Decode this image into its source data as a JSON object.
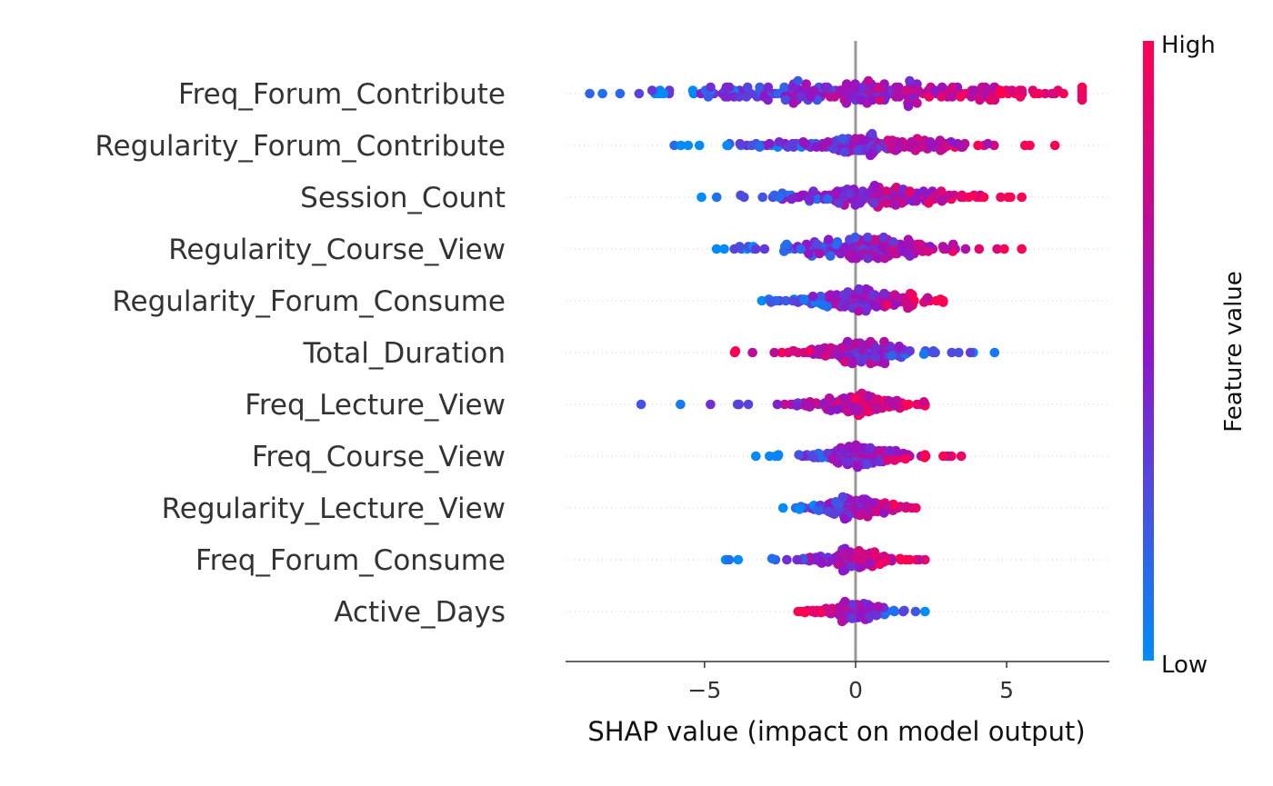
{
  "chart_data": {
    "type": "scatter",
    "subtype": "beeswarm",
    "xlabel": "SHAP value (impact on model output)",
    "xlim": [
      -9.6,
      8.4
    ],
    "xticks": [
      {
        "value": -5,
        "label": "−5"
      },
      {
        "value": 0,
        "label": "0"
      },
      {
        "value": 5,
        "label": "5"
      }
    ],
    "zero_line": 0,
    "features": [
      {
        "name": "Freq_Forum_Contribute",
        "range": [
          -8.8,
          7.5
        ],
        "spread_center": 0.6,
        "direction": 1,
        "n": 250,
        "sigma": 3.2,
        "band": 0.55
      },
      {
        "name": "Regularity_Forum_Contribute",
        "range": [
          -6.0,
          6.6
        ],
        "spread_center": 0.3,
        "direction": 1,
        "n": 200,
        "sigma": 1.7,
        "band": 0.45
      },
      {
        "name": "Session_Count",
        "range": [
          -5.1,
          5.5
        ],
        "spread_center": 0.5,
        "direction": 1,
        "n": 190,
        "sigma": 1.6,
        "band": 0.45
      },
      {
        "name": "Regularity_Course_View",
        "range": [
          -4.6,
          5.5
        ],
        "spread_center": 0.3,
        "direction": 1,
        "n": 180,
        "sigma": 1.4,
        "band": 0.45
      },
      {
        "name": "Regularity_Forum_Consume",
        "range": [
          -3.1,
          2.9
        ],
        "spread_center": 0.2,
        "direction": 1,
        "n": 190,
        "sigma": 1.0,
        "band": 0.45
      },
      {
        "name": "Total_Duration",
        "range": [
          -4.0,
          4.6
        ],
        "spread_center": 0.1,
        "direction": -1,
        "n": 180,
        "sigma": 0.9,
        "band": 0.45
      },
      {
        "name": "Freq_Lecture_View",
        "range": [
          -7.1,
          2.3
        ],
        "spread_center": 0.2,
        "direction": 1,
        "n": 170,
        "sigma": 0.8,
        "band": 0.45
      },
      {
        "name": "Freq_Course_View",
        "range": [
          -3.3,
          3.5
        ],
        "spread_center": 0.0,
        "direction": 1,
        "n": 170,
        "sigma": 0.8,
        "band": 0.45
      },
      {
        "name": "Regularity_Lecture_View",
        "range": [
          -2.4,
          2.0
        ],
        "spread_center": 0.0,
        "direction": 1,
        "n": 160,
        "sigma": 0.7,
        "band": 0.45
      },
      {
        "name": "Freq_Forum_Consume",
        "range": [
          -4.3,
          2.3
        ],
        "spread_center": 0.0,
        "direction": 1,
        "n": 160,
        "sigma": 0.7,
        "band": 0.45
      },
      {
        "name": "Active_Days",
        "range": [
          -1.9,
          2.3
        ],
        "spread_center": 0.0,
        "direction": -1,
        "n": 150,
        "sigma": 0.6,
        "band": 0.4
      }
    ],
    "colorbar": {
      "title": "Feature value",
      "high_label": "High",
      "low_label": "Low",
      "high_color": "#ff0052",
      "mid_color": "#8f15c9",
      "low_color": "#008bfb"
    },
    "axis_color": "#333333",
    "zero_line_color": "#999999",
    "gridline_color": "#cccccc"
  }
}
